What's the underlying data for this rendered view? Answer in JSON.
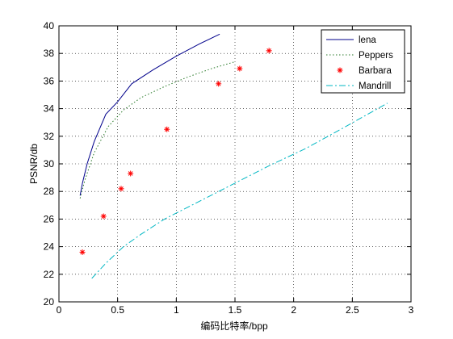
{
  "chart_data": {
    "type": "line",
    "title": "",
    "xlabel": "编码比特率/bpp",
    "ylabel": "PSNR/db",
    "xlim": [
      0,
      3
    ],
    "ylim": [
      20,
      40
    ],
    "xticks": [
      "0",
      "0.5",
      "1",
      "1.5",
      "2",
      "2.5",
      "3"
    ],
    "yticks": [
      "20",
      "22",
      "24",
      "26",
      "28",
      "30",
      "32",
      "34",
      "36",
      "38",
      "40"
    ],
    "grid": true,
    "legend_position": "top-right",
    "series": [
      {
        "name": "lena",
        "style": "solid",
        "marker": "none",
        "color": "#00008b",
        "x": [
          0.18,
          0.2,
          0.24,
          0.3,
          0.4,
          0.5,
          0.62,
          0.8,
          1.0,
          1.2,
          1.37
        ],
        "y": [
          27.7,
          28.6,
          30.0,
          31.6,
          33.6,
          34.5,
          35.8,
          36.8,
          37.8,
          38.7,
          39.4
        ]
      },
      {
        "name": "Peppers",
        "style": "dotted",
        "marker": "none",
        "color": "#2a7a2a",
        "x": [
          0.18,
          0.22,
          0.3,
          0.42,
          0.55,
          0.7,
          0.9,
          1.1,
          1.3,
          1.5
        ],
        "y": [
          27.5,
          28.8,
          30.8,
          32.7,
          33.9,
          34.8,
          35.6,
          36.3,
          36.9,
          37.4
        ]
      },
      {
        "name": "Barbara",
        "style": "none",
        "marker": "asterisk",
        "color": "#ff0000",
        "x": [
          0.2,
          0.38,
          0.53,
          0.61,
          0.92,
          1.36,
          1.54,
          1.79
        ],
        "y": [
          23.6,
          26.2,
          28.2,
          29.3,
          32.5,
          35.8,
          36.9,
          38.2
        ]
      },
      {
        "name": "Mandrill",
        "style": "dashdot",
        "marker": "none",
        "color": "#00b7c3",
        "x": [
          0.28,
          0.4,
          0.55,
          0.7,
          0.9,
          1.2,
          1.5,
          1.8,
          2.1,
          2.4,
          2.8
        ],
        "y": [
          21.7,
          22.8,
          24.0,
          24.9,
          26.0,
          27.3,
          28.6,
          29.9,
          31.1,
          32.5,
          34.4
        ]
      }
    ]
  }
}
